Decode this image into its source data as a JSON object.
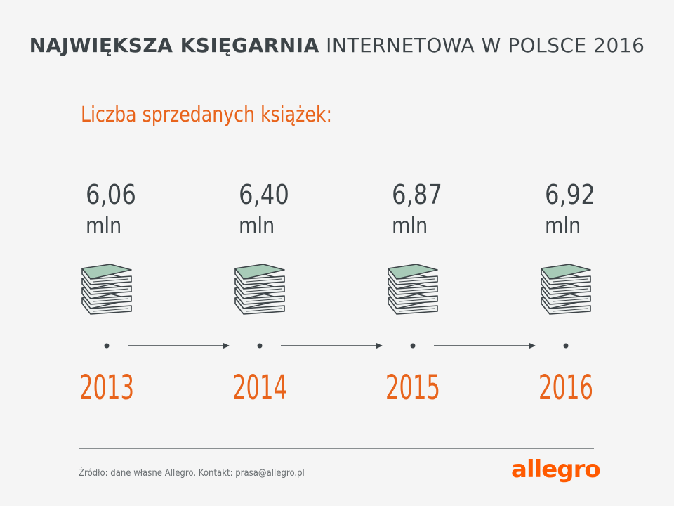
{
  "title": {
    "bold": "NAJWIĘKSZA KSIĘGARNIA",
    "regular": "INTERNETOWA W POLSCE 2016"
  },
  "subtitle": "Liczba sprzedanych książek:",
  "chart_data": {
    "type": "timeline",
    "unit": "mln",
    "categories": [
      "2013",
      "2014",
      "2015",
      "2016"
    ],
    "value_labels": [
      "6,06",
      "6,40",
      "6,87",
      "6,92"
    ],
    "values": [
      6.06,
      6.4,
      6.87,
      6.92
    ]
  },
  "colors": {
    "accent": "#e8641c",
    "text": "#3d4448",
    "book_cover": "#a8cbb8",
    "book_outline": "#3d4448"
  },
  "footer": {
    "source": "Źródło: dane własne Allegro. Kontakt: prasa@allegro.pl",
    "logo": "allegro"
  }
}
